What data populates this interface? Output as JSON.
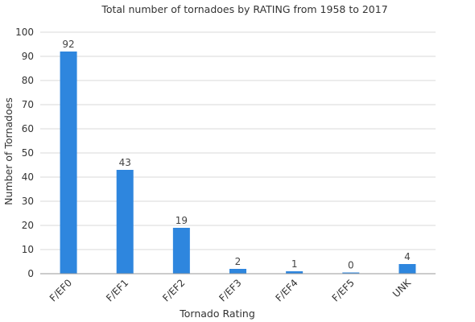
{
  "chart_data": {
    "type": "bar",
    "title": "Total number of tornadoes by RATING from 1958 to 2017",
    "xlabel": "Tornado Rating",
    "ylabel": "Number of Tornadoes",
    "categories": [
      "F/EF0",
      "F/EF1",
      "F/EF2",
      "F/EF3",
      "F/EF4",
      "F/EF5",
      "UNK"
    ],
    "values": [
      92,
      43,
      19,
      2,
      1,
      0,
      4
    ],
    "ylim": [
      0,
      100
    ],
    "yticks": [
      0,
      10,
      20,
      30,
      40,
      50,
      60,
      70,
      80,
      90,
      100
    ],
    "grid": true,
    "legend": "none",
    "bar_color": "#2e86de"
  }
}
